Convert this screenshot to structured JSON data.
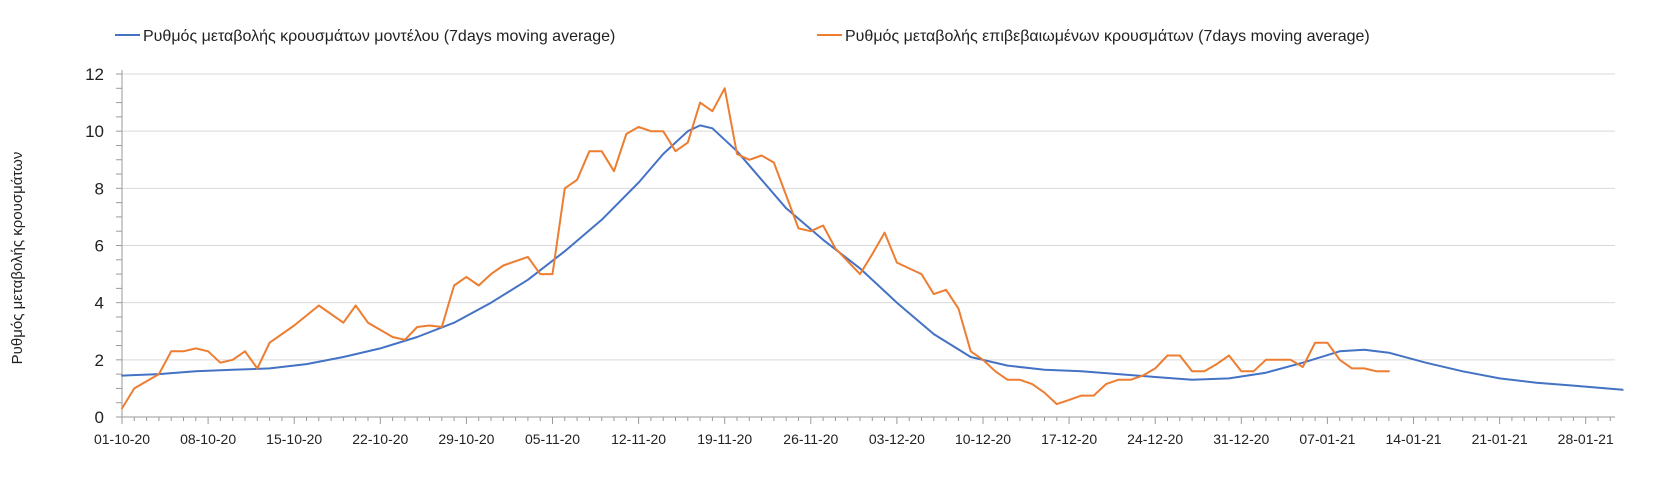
{
  "chart_data": {
    "type": "line",
    "title": "",
    "xlabel": "",
    "ylabel": "Ρυθμός μεταβολής κρουσμάτων",
    "ylim": [
      0,
      12
    ],
    "yticks": [
      0,
      2,
      4,
      6,
      8,
      10,
      12
    ],
    "x_start": "01-10-20",
    "x_end_label": "28-01-21",
    "xticks": [
      "01-10-20",
      "08-10-20",
      "15-10-20",
      "22-10-20",
      "29-10-20",
      "05-11-20",
      "12-11-20",
      "19-11-20",
      "26-11-20",
      "03-12-20",
      "10-12-20",
      "17-12-20",
      "24-12-20",
      "31-12-20",
      "07-01-21",
      "14-01-21",
      "21-01-21",
      "28-01-21"
    ],
    "grid": true,
    "legend_position": "top",
    "series": [
      {
        "name": "Ρυθμός μεταβολής κρουσμάτων μοντέλου (7days moving average)",
        "color": "#4472C4",
        "points": [
          [
            "01-10-20",
            1.45
          ],
          [
            "04-10-20",
            1.5
          ],
          [
            "07-10-20",
            1.6
          ],
          [
            "10-10-20",
            1.65
          ],
          [
            "13-10-20",
            1.7
          ],
          [
            "16-10-20",
            1.85
          ],
          [
            "19-10-20",
            2.1
          ],
          [
            "22-10-20",
            2.4
          ],
          [
            "25-10-20",
            2.8
          ],
          [
            "28-10-20",
            3.3
          ],
          [
            "31-10-20",
            4.0
          ],
          [
            "03-11-20",
            4.8
          ],
          [
            "06-11-20",
            5.8
          ],
          [
            "09-11-20",
            6.9
          ],
          [
            "12-11-20",
            8.2
          ],
          [
            "14-11-20",
            9.2
          ],
          [
            "16-11-20",
            10.0
          ],
          [
            "17-11-20",
            10.2
          ],
          [
            "18-11-20",
            10.1
          ],
          [
            "20-11-20",
            9.3
          ],
          [
            "22-11-20",
            8.3
          ],
          [
            "24-11-20",
            7.3
          ],
          [
            "27-11-20",
            6.2
          ],
          [
            "30-11-20",
            5.2
          ],
          [
            "03-12-20",
            4.0
          ],
          [
            "06-12-20",
            2.9
          ],
          [
            "09-12-20",
            2.1
          ],
          [
            "12-12-20",
            1.8
          ],
          [
            "15-12-20",
            1.65
          ],
          [
            "18-12-20",
            1.6
          ],
          [
            "21-12-20",
            1.5
          ],
          [
            "24-12-20",
            1.4
          ],
          [
            "27-12-20",
            1.3
          ],
          [
            "30-12-20",
            1.35
          ],
          [
            "02-01-21",
            1.55
          ],
          [
            "05-01-21",
            1.9
          ],
          [
            "08-01-21",
            2.3
          ],
          [
            "10-01-21",
            2.35
          ],
          [
            "12-01-21",
            2.25
          ],
          [
            "15-01-21",
            1.9
          ],
          [
            "18-01-21",
            1.6
          ],
          [
            "21-01-21",
            1.35
          ],
          [
            "24-01-21",
            1.2
          ],
          [
            "27-01-21",
            1.1
          ],
          [
            "31-01-21",
            0.95
          ]
        ]
      },
      {
        "name": "Ρυθμός μεταβολής επιβεβαιωμένων κρουσμάτων (7days moving average)",
        "color": "#ED7D31",
        "points": [
          [
            "01-10-20",
            0.3
          ],
          [
            "02-10-20",
            1.0
          ],
          [
            "04-10-20",
            1.5
          ],
          [
            "05-10-20",
            2.3
          ],
          [
            "06-10-20",
            2.3
          ],
          [
            "07-10-20",
            2.4
          ],
          [
            "08-10-20",
            2.3
          ],
          [
            "09-10-20",
            1.9
          ],
          [
            "10-10-20",
            2.0
          ],
          [
            "11-10-20",
            2.3
          ],
          [
            "12-10-20",
            1.7
          ],
          [
            "13-10-20",
            2.6
          ],
          [
            "15-10-20",
            3.2
          ],
          [
            "17-10-20",
            3.9
          ],
          [
            "19-10-20",
            3.3
          ],
          [
            "20-10-20",
            3.9
          ],
          [
            "21-10-20",
            3.3
          ],
          [
            "23-10-20",
            2.8
          ],
          [
            "24-10-20",
            2.7
          ],
          [
            "25-10-20",
            3.15
          ],
          [
            "26-10-20",
            3.2
          ],
          [
            "27-10-20",
            3.15
          ],
          [
            "28-10-20",
            4.6
          ],
          [
            "29-10-20",
            4.9
          ],
          [
            "30-10-20",
            4.6
          ],
          [
            "31-10-20",
            5.0
          ],
          [
            "01-11-20",
            5.3
          ],
          [
            "03-11-20",
            5.6
          ],
          [
            "04-11-20",
            5.0
          ],
          [
            "05-11-20",
            5.0
          ],
          [
            "06-11-20",
            8.0
          ],
          [
            "07-11-20",
            8.3
          ],
          [
            "08-11-20",
            9.3
          ],
          [
            "09-11-20",
            9.3
          ],
          [
            "10-11-20",
            8.6
          ],
          [
            "11-11-20",
            9.9
          ],
          [
            "12-11-20",
            10.15
          ],
          [
            "13-11-20",
            10.0
          ],
          [
            "14-11-20",
            10.0
          ],
          [
            "15-11-20",
            9.3
          ],
          [
            "16-11-20",
            9.6
          ],
          [
            "17-11-20",
            11.0
          ],
          [
            "18-11-20",
            10.7
          ],
          [
            "19-11-20",
            11.5
          ],
          [
            "20-11-20",
            9.2
          ],
          [
            "21-11-20",
            9.0
          ],
          [
            "22-11-20",
            9.15
          ],
          [
            "23-11-20",
            8.9
          ],
          [
            "25-11-20",
            6.6
          ],
          [
            "26-11-20",
            6.5
          ],
          [
            "27-11-20",
            6.7
          ],
          [
            "28-11-20",
            5.9
          ],
          [
            "30-11-20",
            5.0
          ],
          [
            "01-12-20",
            5.7
          ],
          [
            "02-12-20",
            6.45
          ],
          [
            "03-12-20",
            5.4
          ],
          [
            "04-12-20",
            5.2
          ],
          [
            "05-12-20",
            5.0
          ],
          [
            "06-12-20",
            4.3
          ],
          [
            "07-12-20",
            4.45
          ],
          [
            "08-12-20",
            3.8
          ],
          [
            "09-12-20",
            2.3
          ],
          [
            "10-12-20",
            2.0
          ],
          [
            "11-12-20",
            1.6
          ],
          [
            "12-12-20",
            1.3
          ],
          [
            "13-12-20",
            1.3
          ],
          [
            "14-12-20",
            1.15
          ],
          [
            "15-12-20",
            0.85
          ],
          [
            "16-12-20",
            0.45
          ],
          [
            "17-12-20",
            0.6
          ],
          [
            "18-12-20",
            0.75
          ],
          [
            "19-12-20",
            0.75
          ],
          [
            "20-12-20",
            1.15
          ],
          [
            "21-12-20",
            1.3
          ],
          [
            "22-12-20",
            1.3
          ],
          [
            "23-12-20",
            1.45
          ],
          [
            "24-12-20",
            1.7
          ],
          [
            "25-12-20",
            2.15
          ],
          [
            "26-12-20",
            2.15
          ],
          [
            "27-12-20",
            1.6
          ],
          [
            "28-12-20",
            1.6
          ],
          [
            "29-12-20",
            1.85
          ],
          [
            "30-12-20",
            2.15
          ],
          [
            "31-12-20",
            1.6
          ],
          [
            "01-01-21",
            1.6
          ],
          [
            "02-01-21",
            2.0
          ],
          [
            "03-01-21",
            2.0
          ],
          [
            "04-01-21",
            2.0
          ],
          [
            "05-01-21",
            1.75
          ],
          [
            "06-01-21",
            2.6
          ],
          [
            "07-01-21",
            2.6
          ],
          [
            "08-01-21",
            2.0
          ],
          [
            "09-01-21",
            1.7
          ],
          [
            "10-01-21",
            1.7
          ],
          [
            "11-01-21",
            1.6
          ],
          [
            "12-01-21",
            1.6
          ]
        ]
      }
    ]
  }
}
